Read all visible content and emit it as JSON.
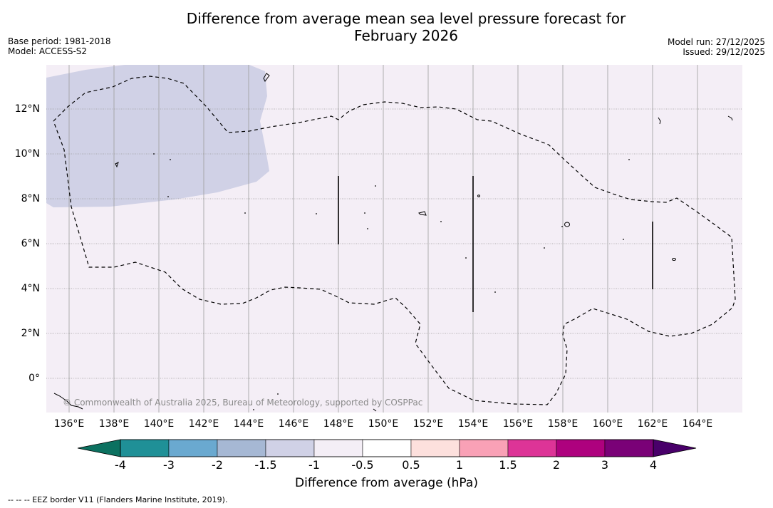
{
  "header": {
    "title_line1": "Difference from average mean sea level pressure forecast for",
    "title_line2": "February 2026",
    "base_period": "Base period: 1981-2018",
    "model": "Model: ACCESS-S2",
    "model_run": "Model run: 27/12/2025",
    "issued": "Issued: 29/12/2025"
  },
  "map": {
    "lon_labels": [
      "136°E",
      "138°E",
      "140°E",
      "142°E",
      "144°E",
      "146°E",
      "148°E",
      "150°E",
      "152°E",
      "154°E",
      "156°E",
      "158°E",
      "160°E",
      "162°E",
      "164°E"
    ],
    "lat_labels": [
      "12°N",
      "10°N",
      "8°N",
      "6°N",
      "4°N",
      "2°N",
      "0°"
    ],
    "copyright": "© Commonwealth of Australia 2025, Bureau of Meteorology, supported by COSPPac",
    "colors": {
      "background_anomaly": "#f4eef6",
      "negative_anomaly": "#d0d1e6",
      "grid": "#a0a0a0"
    }
  },
  "legend": {
    "tick_labels": [
      "-4",
      "-3",
      "-2",
      "-1.5",
      "-1",
      "-0.5",
      "0.5",
      "1",
      "1.5",
      "2",
      "3",
      "4"
    ],
    "title": "Difference from average (hPa)",
    "colors": [
      "#0c7160",
      "#1f9097",
      "#6aa9d0",
      "#a6b8d4",
      "#d0d1e6",
      "#f4eef6",
      "#ffffff",
      "#fde0dd",
      "#f9a1b6",
      "#dd3497",
      "#ae017e",
      "#7a0177",
      "#49006a"
    ]
  },
  "footnote": "--  --  -- EEZ border V11 (Flanders Marine Institute, 2019)."
}
